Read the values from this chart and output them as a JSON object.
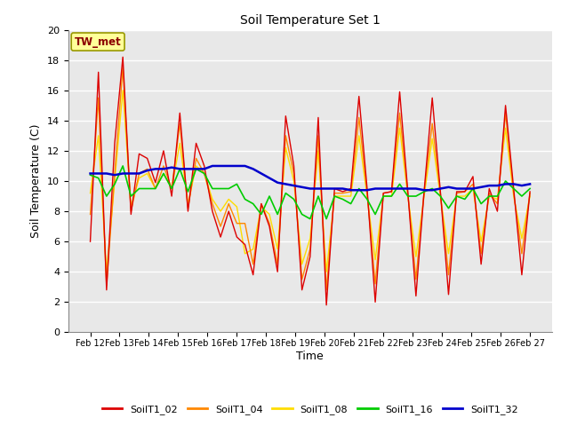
{
  "title": "Soil Temperature Set 1",
  "xlabel": "Time",
  "ylabel": "Soil Temperature (C)",
  "ylim": [
    0,
    20
  ],
  "yticks": [
    0,
    2,
    4,
    6,
    8,
    10,
    12,
    14,
    16,
    18,
    20
  ],
  "annotation_text": "TW_met",
  "annotation_color": "#8b0000",
  "annotation_bg": "#ffff99",
  "annotation_border": "#999900",
  "bg_color": "#ffffff",
  "plot_bg": "#e8e8e8",
  "grid_color": "#ffffff",
  "series_colors": {
    "SoilT1_02": "#dd0000",
    "SoilT1_04": "#ff8800",
    "SoilT1_08": "#ffdd00",
    "SoilT1_16": "#00cc00",
    "SoilT1_32": "#0000cc"
  },
  "x_labels": [
    "Feb 12",
    "Feb 13",
    "Feb 14",
    "Feb 15",
    "Feb 16",
    "Feb 17",
    "Feb 18",
    "Feb 19",
    "Feb 20",
    "Feb 21",
    "Feb 22",
    "Feb 23",
    "Feb 24",
    "Feb 25",
    "Feb 26",
    "Feb 27"
  ],
  "SoilT1_02": [
    6.0,
    17.2,
    2.8,
    12.5,
    18.2,
    7.8,
    11.8,
    11.5,
    9.9,
    12.0,
    9.0,
    14.5,
    8.0,
    12.5,
    11.0,
    8.0,
    6.3,
    8.0,
    6.3,
    5.8,
    3.8,
    8.5,
    7.0,
    4.0,
    14.3,
    11.0,
    2.8,
    5.0,
    14.2,
    1.8,
    9.5,
    9.3,
    9.5,
    15.6,
    9.5,
    2.0,
    9.2,
    9.3,
    15.9,
    9.3,
    2.4,
    9.3,
    15.5,
    9.3,
    2.5,
    9.3,
    9.3,
    10.3,
    4.5,
    9.5,
    8.0,
    15.0,
    9.5,
    3.8,
    9.3
  ],
  "SoilT1_04": [
    7.8,
    15.5,
    3.1,
    10.5,
    17.5,
    8.0,
    10.5,
    10.8,
    9.5,
    11.0,
    9.5,
    13.8,
    8.2,
    11.5,
    10.5,
    8.5,
    7.0,
    8.5,
    7.2,
    7.2,
    4.5,
    8.5,
    7.2,
    4.5,
    13.0,
    10.5,
    3.5,
    5.5,
    13.0,
    2.8,
    9.2,
    9.2,
    9.3,
    14.2,
    9.2,
    3.2,
    9.2,
    9.3,
    14.5,
    9.2,
    3.5,
    9.3,
    13.8,
    9.2,
    3.8,
    9.2,
    9.3,
    9.8,
    5.2,
    9.2,
    8.5,
    14.5,
    9.2,
    5.2,
    9.2
  ],
  "SoilT1_08": [
    9.2,
    13.0,
    4.0,
    10.0,
    16.0,
    8.3,
    10.2,
    10.5,
    9.5,
    10.5,
    9.5,
    12.5,
    8.5,
    11.0,
    10.5,
    8.8,
    8.0,
    8.8,
    8.3,
    5.2,
    5.5,
    8.3,
    7.8,
    5.5,
    12.2,
    10.0,
    4.5,
    6.2,
    12.0,
    4.0,
    9.0,
    9.0,
    9.0,
    13.0,
    9.0,
    4.8,
    9.0,
    9.0,
    13.5,
    9.0,
    5.0,
    9.0,
    12.8,
    9.0,
    5.2,
    9.0,
    9.0,
    9.5,
    6.0,
    9.0,
    8.8,
    13.5,
    9.0,
    6.2,
    9.0
  ],
  "SoilT1_16": [
    10.4,
    10.2,
    9.0,
    9.8,
    11.0,
    9.0,
    9.5,
    9.5,
    9.5,
    10.5,
    9.5,
    10.8,
    9.3,
    10.8,
    10.5,
    9.5,
    9.5,
    9.5,
    9.8,
    8.8,
    8.5,
    7.8,
    9.0,
    7.8,
    9.2,
    8.8,
    7.8,
    7.5,
    9.0,
    7.5,
    9.0,
    8.8,
    8.5,
    9.5,
    8.8,
    7.8,
    9.0,
    9.0,
    9.8,
    9.0,
    9.0,
    9.3,
    9.5,
    9.0,
    8.2,
    9.0,
    8.8,
    9.5,
    8.5,
    9.0,
    9.0,
    10.0,
    9.5,
    9.0,
    9.5
  ],
  "SoilT1_32": [
    10.5,
    10.5,
    10.5,
    10.4,
    10.5,
    10.5,
    10.5,
    10.7,
    10.8,
    10.8,
    10.9,
    10.8,
    10.8,
    10.8,
    10.8,
    11.0,
    11.0,
    11.0,
    11.0,
    11.0,
    10.8,
    10.5,
    10.2,
    9.9,
    9.8,
    9.7,
    9.6,
    9.5,
    9.5,
    9.5,
    9.5,
    9.5,
    9.4,
    9.4,
    9.4,
    9.5,
    9.5,
    9.5,
    9.5,
    9.5,
    9.5,
    9.4,
    9.4,
    9.5,
    9.6,
    9.5,
    9.5,
    9.5,
    9.6,
    9.7,
    9.7,
    9.8,
    9.8,
    9.7,
    9.8
  ]
}
